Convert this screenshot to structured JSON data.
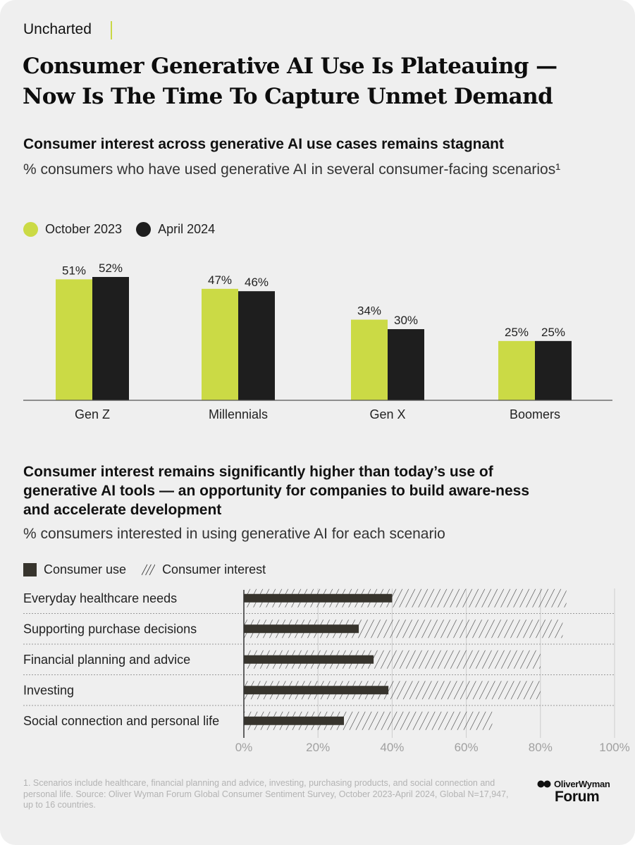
{
  "brand": "Uncharted",
  "title": "Consumer Generative AI Use Is Plateauing — Now Is The Time To Capture Unmet Demand",
  "section1": {
    "heading": "Consumer interest across generative AI use cases remains stagnant",
    "subtitle": "% consumers who have used generative AI in several consumer-facing scenarios¹"
  },
  "section2": {
    "heading": "Consumer interest remains significantly higher than today’s use of generative AI tools — an opportunity for companies to build aware-ness and accelerate development",
    "subtitle": "% consumers interested in using generative AI for each scenario"
  },
  "colors": {
    "lime": "#cbda45",
    "dark": "#1e1e1e",
    "use": "#37342d",
    "grid": "#cccccc",
    "tick": "#a0a0a0"
  },
  "chart_data": [
    {
      "type": "bar",
      "categories": [
        "Gen Z",
        "Millennials",
        "Gen X",
        "Boomers"
      ],
      "series": [
        {
          "name": "October 2023",
          "values": [
            51,
            47,
            34,
            25
          ]
        },
        {
          "name": "April 2024",
          "values": [
            52,
            46,
            30,
            25
          ]
        }
      ],
      "data_labels": [
        [
          "51%",
          "47%",
          "34%",
          "25%"
        ],
        [
          "52%",
          "46%",
          "30%",
          "25%"
        ]
      ],
      "ylim": [
        0,
        52
      ]
    },
    {
      "type": "bar",
      "orientation": "horizontal",
      "categories": [
        "Everyday healthcare needs",
        "Supporting purchase decisions",
        "Financial planning and advice",
        "Investing",
        "Social connection and personal life"
      ],
      "series": [
        {
          "name": "Consumer use",
          "values": [
            40,
            31,
            35,
            39,
            27
          ]
        },
        {
          "name": "Consumer interest",
          "values": [
            87,
            86,
            80,
            80,
            67
          ]
        }
      ],
      "xlim": [
        0,
        100
      ],
      "xticks": [
        "0%",
        "20%",
        "40%",
        "60%",
        "80%",
        "100%"
      ]
    }
  ],
  "footnote": "1. Scenarios include healthcare, financial planning and advice, investing, purchasing products, and social connection and personal life. Source: Oliver Wyman Forum Global Consumer Sentiment Survey, October 2023-April 2024, Global N=17,947, up to 16 countries.",
  "logo": {
    "top": "OliverWyman",
    "bottom": "Forum"
  }
}
